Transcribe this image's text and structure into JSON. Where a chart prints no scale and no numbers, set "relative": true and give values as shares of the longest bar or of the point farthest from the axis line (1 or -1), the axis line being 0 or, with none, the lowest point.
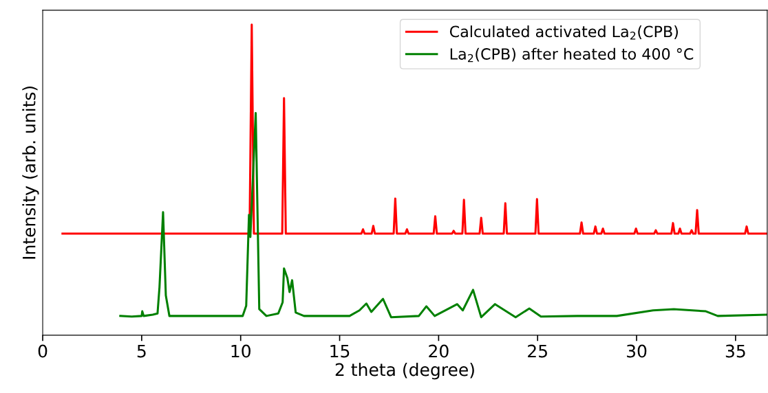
{
  "chart_data": {
    "type": "line",
    "relative": true,
    "xlabel": "2 theta (degree)",
    "ylabel": "Intensity (arb. units)",
    "xlim": [
      0,
      36.6
    ],
    "xticks": [
      0,
      5,
      10,
      15,
      20,
      25,
      30,
      35
    ],
    "legend": "top right",
    "grid": false,
    "series": [
      {
        "name": "Calculated activated La$_{2}$(CPB)",
        "color": "#ff0000",
        "x": [
          1.0,
          10.45,
          10.56,
          10.67,
          12.1,
          12.19,
          12.28,
          16.1,
          16.18,
          16.26,
          16.62,
          16.7,
          16.78,
          17.73,
          17.81,
          17.89,
          18.32,
          18.4,
          18.48,
          19.75,
          19.83,
          19.91,
          20.68,
          20.76,
          20.84,
          21.2,
          21.28,
          21.36,
          22.07,
          22.15,
          22.23,
          23.29,
          23.37,
          23.45,
          24.89,
          24.97,
          25.05,
          27.14,
          27.22,
          27.3,
          27.84,
          27.92,
          28.0,
          28.22,
          28.3,
          28.38,
          29.89,
          29.97,
          30.05,
          30.89,
          30.97,
          31.05,
          31.76,
          31.84,
          31.92,
          32.11,
          32.19,
          32.27,
          32.7,
          32.78,
          32.86,
          32.98,
          33.06,
          33.14,
          35.48,
          35.56,
          35.64,
          36.6
        ],
        "values": [
          0.327,
          0.327,
          1.0,
          0.327,
          0.327,
          0.763,
          0.327,
          0.327,
          0.341,
          0.327,
          0.327,
          0.352,
          0.327,
          0.327,
          0.44,
          0.327,
          0.327,
          0.341,
          0.327,
          0.327,
          0.383,
          0.327,
          0.327,
          0.336,
          0.327,
          0.327,
          0.436,
          0.327,
          0.327,
          0.378,
          0.327,
          0.327,
          0.425,
          0.327,
          0.327,
          0.438,
          0.327,
          0.327,
          0.363,
          0.327,
          0.327,
          0.35,
          0.327,
          0.327,
          0.343,
          0.327,
          0.327,
          0.343,
          0.327,
          0.327,
          0.338,
          0.327,
          0.327,
          0.361,
          0.327,
          0.327,
          0.343,
          0.327,
          0.327,
          0.338,
          0.327,
          0.327,
          0.403,
          0.327,
          0.327,
          0.35,
          0.327,
          0.327
        ]
      },
      {
        "name": "La$_{2}$(CPB) after heated to 400 °C",
        "color": "#008000",
        "x": [
          3.92,
          4.5,
          5.0,
          5.03,
          5.1,
          5.56,
          5.8,
          5.9,
          6.08,
          6.22,
          6.4,
          8.0,
          10.1,
          10.28,
          10.42,
          10.49,
          10.76,
          10.94,
          11.3,
          11.9,
          12.12,
          12.19,
          12.36,
          12.47,
          12.6,
          12.78,
          13.2,
          15.5,
          16.0,
          16.35,
          16.6,
          17.19,
          17.6,
          19.0,
          19.38,
          19.8,
          20.94,
          21.22,
          21.74,
          22.15,
          22.85,
          23.89,
          24.58,
          25.17,
          27.0,
          29.0,
          30.83,
          31.88,
          33.5,
          34.1,
          36.6
        ],
        "values": [
          0.062,
          0.06,
          0.062,
          0.077,
          0.062,
          0.066,
          0.07,
          0.155,
          0.396,
          0.128,
          0.062,
          0.062,
          0.062,
          0.095,
          0.387,
          0.316,
          0.715,
          0.084,
          0.062,
          0.07,
          0.106,
          0.215,
          0.184,
          0.139,
          0.177,
          0.073,
          0.062,
          0.062,
          0.08,
          0.102,
          0.075,
          0.117,
          0.058,
          0.062,
          0.093,
          0.062,
          0.1,
          0.08,
          0.146,
          0.058,
          0.1,
          0.058,
          0.086,
          0.06,
          0.062,
          0.062,
          0.08,
          0.084,
          0.077,
          0.062,
          0.066
        ]
      }
    ]
  }
}
